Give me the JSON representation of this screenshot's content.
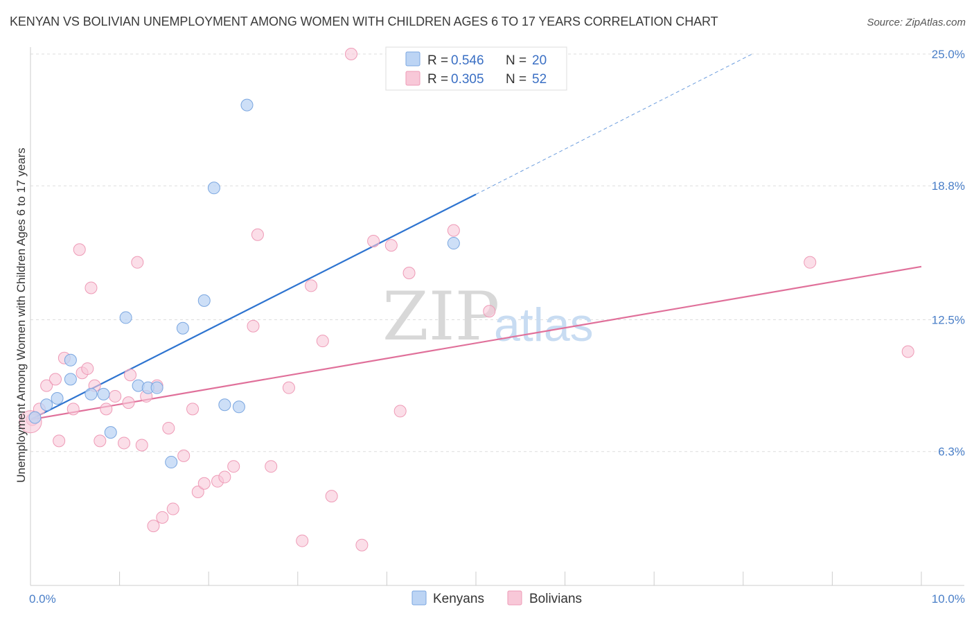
{
  "title": "KENYAN VS BOLIVIAN UNEMPLOYMENT AMONG WOMEN WITH CHILDREN AGES 6 TO 17 YEARS CORRELATION CHART",
  "source": "Source: ZipAtlas.com",
  "watermark": {
    "zip": "ZIP",
    "atlas": "atlas"
  },
  "legend": {
    "kenyans": {
      "r_label": "R = ",
      "r_value": "0.546",
      "n_label": "N = ",
      "n_value": "20"
    },
    "bolivians": {
      "r_label": "R = ",
      "r_value": "0.305",
      "n_label": "N = ",
      "n_value": "52"
    }
  },
  "colors": {
    "kenyans_fill": "#bcd4f4",
    "kenyans_stroke": "#7aa6e0",
    "kenyans_line": "#2e74d0",
    "bolivians_fill": "#f8c8d8",
    "bolivians_stroke": "#ee9ab6",
    "bolivians_line": "#e0709a",
    "grid": "#dddddd",
    "tick_text": "#4a7fc8"
  },
  "chart_data": {
    "type": "scatter",
    "title": "KENYAN VS BOLIVIAN UNEMPLOYMENT AMONG WOMEN WITH CHILDREN AGES 6 TO 17 YEARS CORRELATION CHART",
    "xlabel": "",
    "ylabel": "Unemployment Among Women with Children Ages 6 to 17 years",
    "xlim": [
      0,
      10
    ],
    "ylim": [
      0,
      25
    ],
    "x_tick_labels": [
      {
        "value": 0,
        "label": "0.0%"
      },
      {
        "value": 10,
        "label": "10.0%"
      }
    ],
    "y_tick_labels": [
      {
        "value": 6.3,
        "label": "6.3%"
      },
      {
        "value": 12.5,
        "label": "12.5%"
      },
      {
        "value": 18.8,
        "label": "18.8%"
      },
      {
        "value": 25.0,
        "label": "25.0%"
      }
    ],
    "series": [
      {
        "name": "Kenyans",
        "points": [
          [
            0.05,
            7.9
          ],
          [
            0.18,
            8.5
          ],
          [
            0.3,
            8.8
          ],
          [
            0.45,
            9.7
          ],
          [
            0.45,
            10.6
          ],
          [
            0.68,
            9.0
          ],
          [
            0.82,
            9.0
          ],
          [
            0.9,
            7.2
          ],
          [
            1.07,
            12.6
          ],
          [
            1.21,
            9.4
          ],
          [
            1.32,
            9.3
          ],
          [
            1.42,
            9.3
          ],
          [
            1.58,
            5.8
          ],
          [
            1.71,
            12.1
          ],
          [
            1.95,
            13.4
          ],
          [
            2.06,
            18.7
          ],
          [
            2.18,
            8.5
          ],
          [
            2.34,
            8.4
          ],
          [
            2.43,
            22.6
          ],
          [
            4.75,
            16.1
          ]
        ],
        "trendline": {
          "x0": 0.0,
          "y0": 7.8,
          "x1": 5.0,
          "y1": 18.4,
          "dashed_to": {
            "x": 8.1,
            "y": 25.0
          }
        }
      },
      {
        "name": "Bolivians",
        "points": [
          [
            0.02,
            7.8
          ],
          [
            0.1,
            8.3
          ],
          [
            0.18,
            9.4
          ],
          [
            0.28,
            9.7
          ],
          [
            0.32,
            6.8
          ],
          [
            0.38,
            10.7
          ],
          [
            0.48,
            8.3
          ],
          [
            0.55,
            15.8
          ],
          [
            0.58,
            10.0
          ],
          [
            0.64,
            10.2
          ],
          [
            0.68,
            14.0
          ],
          [
            0.72,
            9.4
          ],
          [
            0.78,
            6.8
          ],
          [
            0.85,
            8.3
          ],
          [
            0.95,
            8.9
          ],
          [
            1.05,
            6.7
          ],
          [
            1.1,
            8.6
          ],
          [
            1.12,
            9.9
          ],
          [
            1.2,
            15.2
          ],
          [
            1.25,
            6.6
          ],
          [
            1.3,
            8.9
          ],
          [
            1.38,
            2.8
          ],
          [
            1.42,
            9.4
          ],
          [
            1.48,
            3.2
          ],
          [
            1.55,
            7.4
          ],
          [
            1.6,
            3.6
          ],
          [
            1.72,
            6.1
          ],
          [
            1.82,
            8.3
          ],
          [
            1.88,
            4.4
          ],
          [
            1.95,
            4.8
          ],
          [
            2.1,
            4.9
          ],
          [
            2.18,
            5.1
          ],
          [
            2.28,
            5.6
          ],
          [
            2.5,
            12.2
          ],
          [
            2.55,
            16.5
          ],
          [
            2.7,
            5.6
          ],
          [
            2.9,
            9.3
          ],
          [
            3.05,
            2.1
          ],
          [
            3.15,
            14.1
          ],
          [
            3.28,
            11.5
          ],
          [
            3.38,
            4.2
          ],
          [
            3.6,
            25.0
          ],
          [
            3.72,
            1.9
          ],
          [
            3.85,
            16.2
          ],
          [
            4.05,
            16.0
          ],
          [
            4.15,
            8.2
          ],
          [
            4.25,
            14.7
          ],
          [
            4.75,
            16.7
          ],
          [
            5.15,
            12.9
          ],
          [
            8.75,
            15.2
          ],
          [
            9.85,
            11.0
          ],
          [
            0.0,
            7.7
          ]
        ],
        "trendline": {
          "x0": 0.0,
          "y0": 7.8,
          "x1": 10.0,
          "y1": 15.0
        }
      }
    ],
    "legend_placement": "top-center",
    "grid": true
  },
  "bottom_legend": {
    "kenyans": "Kenyans",
    "bolivians": "Bolivians"
  }
}
